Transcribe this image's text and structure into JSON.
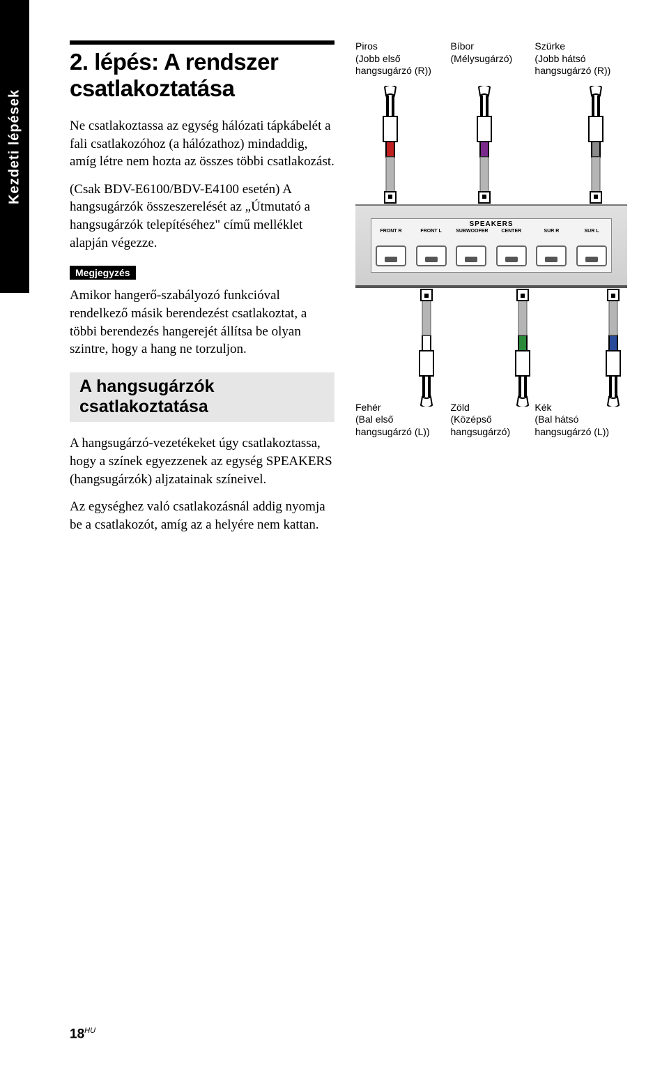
{
  "sideTab": "Kezdeti lépések",
  "heading": "2. lépés: A rendszer csatlakoztatása",
  "para1": "Ne csatlakoztassa az egység hálózati tápkábelét a fali csatlakozóhoz (a hálózathoz) mindaddig, amíg létre nem hozta az összes többi csatlakozást.",
  "para2": "(Csak BDV-E6100/BDV-E4100 esetén) A hangsugárzók összeszerelését az „Útmutató a hangsugárzók telepítéséhez\" című melléklet alapján végezze.",
  "noteChip": "Megjegyzés",
  "noteText": "Amikor hangerő-szabályozó funkcióval rendelkező másik berendezést csatlakoztat, a többi berendezés hangerejét állítsa be olyan szintre, hogy a hang ne torzuljon.",
  "subHeading": "A hangsugárzók csatlakoztatása",
  "para3": "A hangsugárzó-vezetékeket úgy csatlakoztassa, hogy a színek egyezzenek az egység SPEAKERS (hangsugárzók) aljzatainak színeivel.",
  "para4": "Az egységhez való csatlakozásnál addig nyomja be a csatlakozót, amíg az a helyére nem kattan.",
  "diagram": {
    "panelTitle": "SPEAKERS",
    "portLabels": [
      "FRONT R",
      "FRONT L",
      "SUBWOOFER",
      "CENTER",
      "SUR R",
      "SUR L"
    ],
    "top": [
      {
        "l1": "Piros",
        "l2": "(Jobb első",
        "l3": "hangsugárzó (R))",
        "color": "#c02020"
      },
      {
        "l1": "Bíbor",
        "l2": "(Mélysugárzó)",
        "l3": "",
        "color": "#7a2a8a"
      },
      {
        "l1": "Szürke",
        "l2": "(Jobb hátsó",
        "l3": "hangsugárzó (R))",
        "color": "#8a8a8a"
      }
    ],
    "bottom": [
      {
        "l1": "Fehér",
        "l2": "(Bal első",
        "l3": "hangsugárzó (L))",
        "color": "#ffffff"
      },
      {
        "l1": "Zöld",
        "l2": "(Középső",
        "l3": "hangsugárzó)",
        "color": "#2a8a3a"
      },
      {
        "l1": "Kék",
        "l2": "(Bal hátsó",
        "l3": "hangsugárzó (L))",
        "color": "#2a4a9a"
      }
    ],
    "topCableX": [
      30,
      165,
      325
    ],
    "botCableX": [
      82,
      220,
      350
    ]
  },
  "pageNumber": "18",
  "pageSuffix": "HU"
}
